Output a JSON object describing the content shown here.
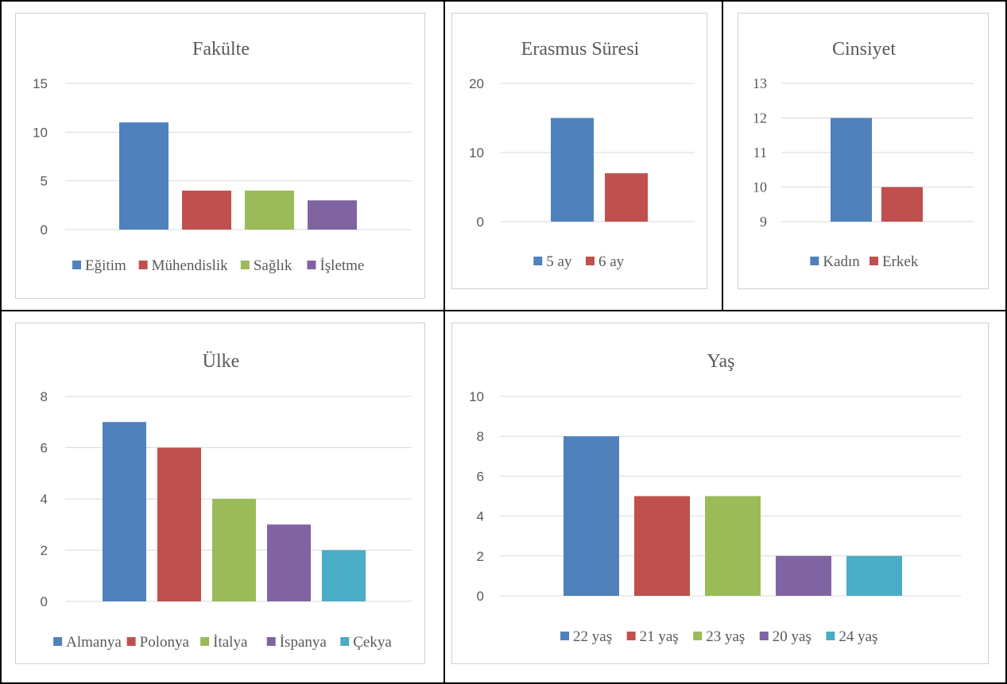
{
  "colors": {
    "blue": "#4f81bd",
    "red": "#c0504d",
    "green": "#9bbb59",
    "purple": "#8064a2",
    "teal": "#4bacc6",
    "gridline": "#d9d9d9",
    "text": "#595959"
  },
  "chart_data": [
    {
      "id": "fakulte",
      "type": "bar",
      "title": "Fakülte",
      "series": [
        {
          "name": "Eğitim",
          "values": [
            11
          ],
          "color": "#4f81bd"
        },
        {
          "name": "Mühendislik",
          "values": [
            4
          ],
          "color": "#c0504d"
        },
        {
          "name": "Sağlık",
          "values": [
            4
          ],
          "color": "#9bbb59"
        },
        {
          "name": "İşletme",
          "values": [
            3
          ],
          "color": "#8064a2"
        }
      ],
      "ylim": [
        0,
        15
      ],
      "yticks": [
        "0",
        "5",
        "10",
        "15"
      ],
      "grid": true,
      "legend_position": "bottom"
    },
    {
      "id": "erasmus",
      "type": "bar",
      "title": "Erasmus Süresi",
      "series": [
        {
          "name": "5 ay",
          "values": [
            15
          ],
          "color": "#4f81bd"
        },
        {
          "name": "6 ay",
          "values": [
            7
          ],
          "color": "#c0504d"
        }
      ],
      "ylim": [
        0,
        20
      ],
      "yticks": [
        "0",
        "10",
        "20"
      ],
      "grid": true,
      "legend_position": "bottom"
    },
    {
      "id": "cinsiyet",
      "type": "bar",
      "title": "Cinsiyet",
      "series": [
        {
          "name": "Kadın",
          "values": [
            12
          ],
          "color": "#4f81bd"
        },
        {
          "name": "Erkek",
          "values": [
            10
          ],
          "color": "#c0504d"
        }
      ],
      "ylim": [
        9,
        13
      ],
      "yticks": [
        "9",
        "10",
        "11",
        "12",
        "13"
      ],
      "grid": true,
      "legend_position": "bottom"
    },
    {
      "id": "ulke",
      "type": "bar",
      "title": "Ülke",
      "series": [
        {
          "name": "Almanya",
          "values": [
            7
          ],
          "color": "#4f81bd"
        },
        {
          "name": "Polonya",
          "values": [
            6
          ],
          "color": "#c0504d"
        },
        {
          "name": "İtalya",
          "values": [
            4
          ],
          "color": "#9bbb59"
        },
        {
          "name": "İspanya",
          "values": [
            3
          ],
          "color": "#8064a2"
        },
        {
          "name": "Çekya",
          "values": [
            2
          ],
          "color": "#4bacc6"
        }
      ],
      "ylim": [
        0,
        8
      ],
      "yticks": [
        "0",
        "2",
        "4",
        "6",
        "8"
      ],
      "grid": true,
      "legend_position": "bottom"
    },
    {
      "id": "yas",
      "type": "bar",
      "title": "Yaş",
      "series": [
        {
          "name": "22 yaş",
          "values": [
            8
          ],
          "color": "#4f81bd"
        },
        {
          "name": "21 yaş",
          "values": [
            5
          ],
          "color": "#c0504d"
        },
        {
          "name": "23 yaş",
          "values": [
            5
          ],
          "color": "#9bbb59"
        },
        {
          "name": "20 yaş",
          "values": [
            2
          ],
          "color": "#8064a2"
        },
        {
          "name": "24 yaş",
          "values": [
            2
          ],
          "color": "#4bacc6"
        }
      ],
      "ylim": [
        0,
        10
      ],
      "yticks": [
        "0",
        "2",
        "4",
        "6",
        "8",
        "10"
      ],
      "grid": true,
      "legend_position": "bottom"
    }
  ]
}
